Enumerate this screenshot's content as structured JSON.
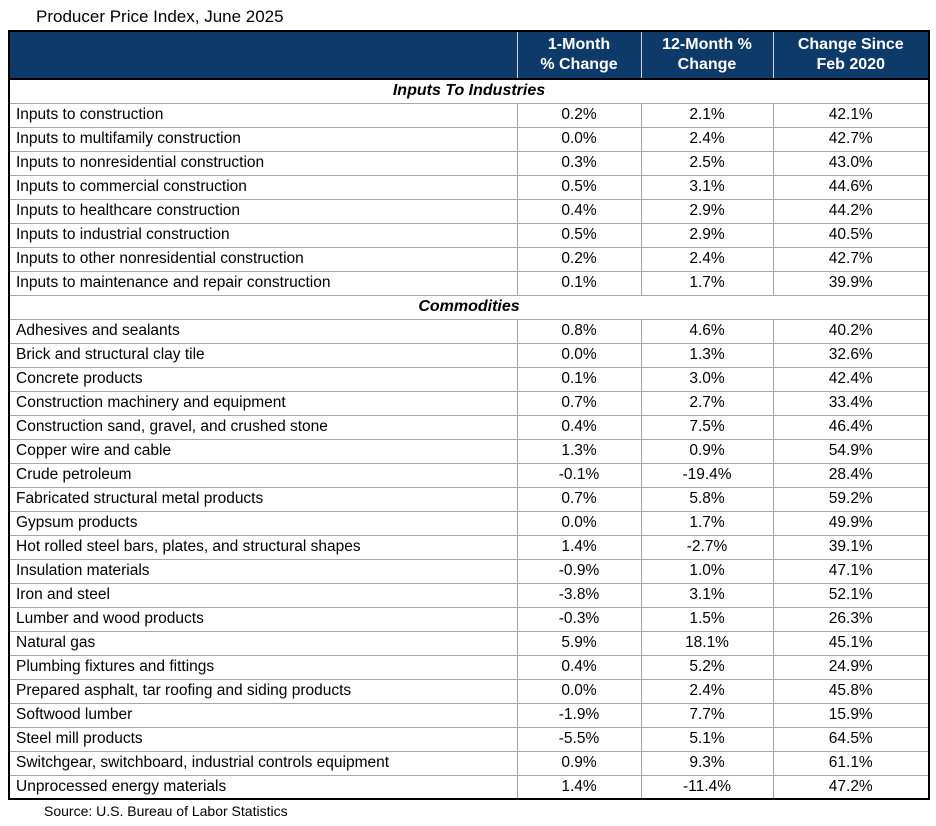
{
  "title": "Producer Price Index, June 2025",
  "source": "Source: U.S. Bureau of Labor Statistics",
  "colors": {
    "header_bg": "#0d3a69",
    "header_text": "#ffffff",
    "grid": "#a6a6a6",
    "outer_border": "#000000"
  },
  "header": {
    "columns": [
      {
        "line1": "1-Month",
        "line2": "% Change"
      },
      {
        "line1": "12-Month %",
        "line2": "Change"
      },
      {
        "line1": "Change Since",
        "line2": "Feb 2020"
      }
    ]
  },
  "chart_data": {
    "type": "table",
    "title": "Producer Price Index, June 2025",
    "columns": [
      "1-Month % Change",
      "12-Month % Change",
      "Change Since Feb 2020"
    ],
    "source": "Source: U.S. Bureau of Labor Statistics",
    "sections": [
      {
        "label": "Inputs To Industries",
        "rows": [
          {
            "label": "Inputs to construction",
            "values": [
              "0.2%",
              "2.1%",
              "42.1%"
            ]
          },
          {
            "label": "Inputs to multifamily construction",
            "values": [
              "0.0%",
              "2.4%",
              "42.7%"
            ]
          },
          {
            "label": "Inputs to nonresidential construction",
            "values": [
              "0.3%",
              "2.5%",
              "43.0%"
            ]
          },
          {
            "label": "Inputs to commercial construction",
            "values": [
              "0.5%",
              "3.1%",
              "44.6%"
            ]
          },
          {
            "label": "Inputs to healthcare construction",
            "values": [
              "0.4%",
              "2.9%",
              "44.2%"
            ]
          },
          {
            "label": "Inputs to industrial construction",
            "values": [
              "0.5%",
              "2.9%",
              "40.5%"
            ]
          },
          {
            "label": "Inputs to other nonresidential construction",
            "values": [
              "0.2%",
              "2.4%",
              "42.7%"
            ]
          },
          {
            "label": "Inputs to maintenance and repair construction",
            "values": [
              "0.1%",
              "1.7%",
              "39.9%"
            ]
          }
        ]
      },
      {
        "label": "Commodities",
        "rows": [
          {
            "label": "Adhesives and sealants",
            "values": [
              "0.8%",
              "4.6%",
              "40.2%"
            ]
          },
          {
            "label": "Brick and structural clay tile",
            "values": [
              "0.0%",
              "1.3%",
              "32.6%"
            ]
          },
          {
            "label": "Concrete products",
            "values": [
              "0.1%",
              "3.0%",
              "42.4%"
            ]
          },
          {
            "label": "Construction machinery and equipment",
            "values": [
              "0.7%",
              "2.7%",
              "33.4%"
            ]
          },
          {
            "label": "Construction sand, gravel, and crushed stone",
            "values": [
              "0.4%",
              "7.5%",
              "46.4%"
            ]
          },
          {
            "label": "Copper wire and cable",
            "values": [
              "1.3%",
              "0.9%",
              "54.9%"
            ]
          },
          {
            "label": "Crude petroleum",
            "values": [
              "-0.1%",
              "-19.4%",
              "28.4%"
            ]
          },
          {
            "label": "Fabricated structural metal products",
            "values": [
              "0.7%",
              "5.8%",
              "59.2%"
            ]
          },
          {
            "label": "Gypsum products",
            "values": [
              "0.0%",
              "1.7%",
              "49.9%"
            ]
          },
          {
            "label": "Hot rolled steel bars, plates, and structural shapes",
            "values": [
              "1.4%",
              "-2.7%",
              "39.1%"
            ]
          },
          {
            "label": "Insulation materials",
            "values": [
              "-0.9%",
              "1.0%",
              "47.1%"
            ]
          },
          {
            "label": "Iron and steel",
            "values": [
              "-3.8%",
              "3.1%",
              "52.1%"
            ]
          },
          {
            "label": "Lumber and wood products",
            "values": [
              "-0.3%",
              "1.5%",
              "26.3%"
            ]
          },
          {
            "label": "Natural gas",
            "values": [
              "5.9%",
              "18.1%",
              "45.1%"
            ]
          },
          {
            "label": "Plumbing fixtures and fittings",
            "values": [
              "0.4%",
              "5.2%",
              "24.9%"
            ]
          },
          {
            "label": "Prepared asphalt, tar roofing and siding products",
            "values": [
              "0.0%",
              "2.4%",
              "45.8%"
            ]
          },
          {
            "label": "Softwood lumber",
            "values": [
              "-1.9%",
              "7.7%",
              "15.9%"
            ]
          },
          {
            "label": "Steel mill products",
            "values": [
              "-5.5%",
              "5.1%",
              "64.5%"
            ]
          },
          {
            "label": "Switchgear, switchboard, industrial controls equipment",
            "values": [
              "0.9%",
              "9.3%",
              "61.1%"
            ]
          },
          {
            "label": "Unprocessed energy materials",
            "values": [
              "1.4%",
              "-11.4%",
              "47.2%"
            ]
          }
        ]
      }
    ]
  }
}
